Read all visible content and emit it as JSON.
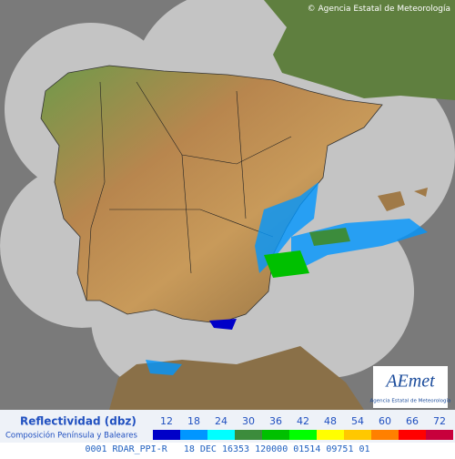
{
  "attribution": "Agencia Estatal de Meteorología",
  "logo": {
    "name": "AEmet",
    "subtitle": "Agencia Estatal de Meteorología"
  },
  "legend": {
    "title": "Reflectividad (dbz)",
    "subtitle": "Composición Península y Baleares",
    "scale": [
      {
        "value": 12,
        "color": "#0000c8"
      },
      {
        "value": 18,
        "color": "#0096ff"
      },
      {
        "value": 24,
        "color": "#00ffff"
      },
      {
        "value": 30,
        "color": "#3c8c3c"
      },
      {
        "value": 36,
        "color": "#00c000"
      },
      {
        "value": 42,
        "color": "#00ff00"
      },
      {
        "value": 48,
        "color": "#ffff00"
      },
      {
        "value": 54,
        "color": "#ffc800"
      },
      {
        "value": 60,
        "color": "#ff8000"
      },
      {
        "value": 66,
        "color": "#ff0000"
      },
      {
        "value": 72,
        "color": "#c8003c"
      }
    ]
  },
  "footer": "0001 RDAR_PPI-R   18 DEC 16353 120000 01514 09751 01"
}
